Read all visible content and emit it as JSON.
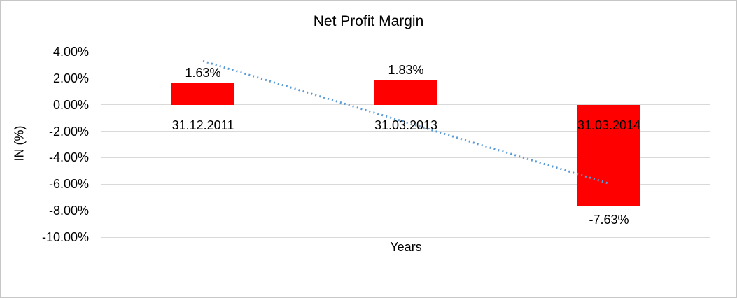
{
  "frame": {
    "background": "#ffffff",
    "border_color": "#c6c6c6"
  },
  "chart_data": {
    "type": "bar",
    "title": "Net Profit Margin",
    "xlabel": "Years",
    "ylabel": "IN (%)",
    "categories": [
      "31.12.2011",
      "31.03.2013",
      "31.03.2014"
    ],
    "values": [
      1.63,
      1.83,
      -7.63
    ],
    "value_labels": [
      "1.63%",
      "1.83%",
      "-7.63%"
    ],
    "ylim": [
      -10,
      4
    ],
    "ytick_step": 2,
    "ytick_labels": [
      "4.00%",
      "2.00%",
      "0.00%",
      "-2.00%",
      "-4.00%",
      "-6.00%",
      "-8.00%",
      "-10.00%"
    ],
    "grid": true,
    "legend": "none",
    "bar_color": "#ff0000",
    "gridline_color": "#d9d9d9",
    "trendline": {
      "type": "linear",
      "style": "dotted",
      "color": "#5b9bd5",
      "start_value": 3.3,
      "end_value": -5.95
    }
  }
}
